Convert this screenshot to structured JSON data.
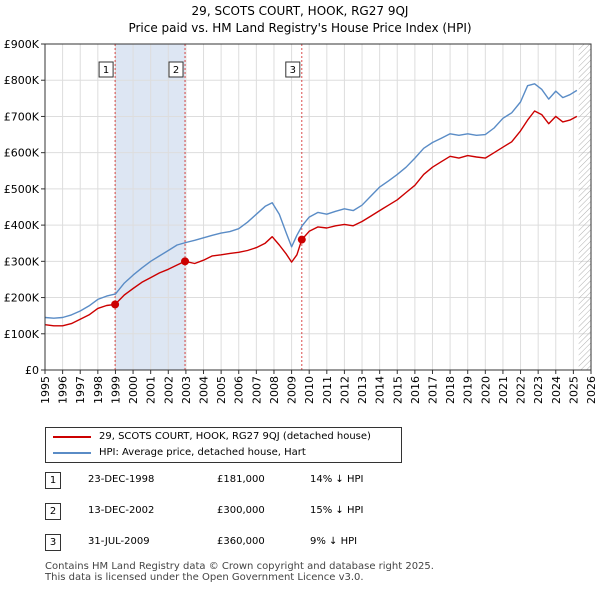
{
  "title_line1": "29, SCOTS COURT, HOOK, RG27 9QJ",
  "title_line2": "Price paid vs. HM Land Registry's House Price Index (HPI)",
  "legend": {
    "property": "29, SCOTS COURT, HOOK, RG27 9QJ (detached house)",
    "hpi": "HPI: Average price, detached house, Hart"
  },
  "colors": {
    "property": "#cc0000",
    "hpi": "#5a8cc6",
    "band": "#dde6f3",
    "marker": "#cc0000",
    "vline": "#cc0000"
  },
  "sales": [
    {
      "num": "1",
      "date": "23-DEC-1998",
      "price": "£181,000",
      "delta": "14% ↓ HPI"
    },
    {
      "num": "2",
      "date": "13-DEC-2002",
      "price": "£300,000",
      "delta": "15% ↓ HPI"
    },
    {
      "num": "3",
      "date": "31-JUL-2009",
      "price": "£360,000",
      "delta": "9% ↓ HPI"
    }
  ],
  "footer": {
    "line1": "Contains HM Land Registry data © Crown copyright and database right 2025.",
    "line2": "This data is licensed under the Open Government Licence v3.0."
  },
  "chart_data": {
    "type": "line",
    "xlim": [
      1995,
      2026
    ],
    "ylim": [
      0,
      900000
    ],
    "y_ticks": [
      0,
      100000,
      200000,
      300000,
      400000,
      500000,
      600000,
      700000,
      800000,
      900000
    ],
    "y_tick_labels": [
      "£0",
      "£100K",
      "£200K",
      "£300K",
      "£400K",
      "£500K",
      "£600K",
      "£700K",
      "£800K",
      "£900K"
    ],
    "x_ticks": [
      1995,
      1996,
      1997,
      1998,
      1999,
      2000,
      2001,
      2002,
      2003,
      2004,
      2005,
      2006,
      2007,
      2008,
      2009,
      2010,
      2011,
      2012,
      2013,
      2014,
      2015,
      2016,
      2017,
      2018,
      2019,
      2020,
      2021,
      2022,
      2023,
      2024,
      2025,
      2026
    ],
    "x_tick_labels": [
      "1995",
      "1996",
      "1997",
      "1998",
      "1999",
      "2000",
      "2001",
      "2002",
      "2003",
      "2004",
      "2005",
      "2006",
      "2007",
      "2008",
      "2009",
      "2010",
      "2011",
      "2012",
      "2013",
      "2014",
      "2015",
      "2016",
      "2017",
      "2018",
      "2019",
      "2020",
      "2021",
      "2022",
      "2023",
      "2024",
      "2025",
      "2026"
    ],
    "grid": true,
    "shaded_bands": [
      [
        1998.98,
        2002.95
      ]
    ],
    "future_hatch_from": 2025.3,
    "sale_markers": [
      {
        "label": "1",
        "x": 1998.98,
        "y": 181000
      },
      {
        "label": "2",
        "x": 2002.95,
        "y": 300000
      },
      {
        "label": "3",
        "x": 2009.58,
        "y": 360000
      }
    ],
    "series": [
      {
        "name": "29, SCOTS COURT, HOOK, RG27 9QJ (detached house)",
        "x": [
          1995.0,
          1995.5,
          1996.0,
          1996.5,
          1997.0,
          1997.5,
          1998.0,
          1998.5,
          1998.98,
          1999.5,
          2000.0,
          2000.5,
          2001.0,
          2001.5,
          2002.0,
          2002.5,
          2002.95,
          2003.5,
          2004.0,
          2004.5,
          2005.0,
          2005.5,
          2006.0,
          2006.5,
          2007.0,
          2007.5,
          2007.9,
          2008.3,
          2008.7,
          2009.0,
          2009.3,
          2009.58,
          2010.0,
          2010.5,
          2011.0,
          2011.5,
          2012.0,
          2012.5,
          2013.0,
          2013.5,
          2014.0,
          2014.5,
          2015.0,
          2015.5,
          2016.0,
          2016.5,
          2017.0,
          2017.5,
          2018.0,
          2018.5,
          2019.0,
          2019.5,
          2020.0,
          2020.5,
          2021.0,
          2021.5,
          2022.0,
          2022.4,
          2022.8,
          2023.2,
          2023.6,
          2024.0,
          2024.4,
          2024.8,
          2025.2
        ],
        "values": [
          125000,
          122000,
          122000,
          128000,
          140000,
          152000,
          170000,
          178000,
          181000,
          207000,
          225000,
          242000,
          255000,
          268000,
          278000,
          290000,
          300000,
          294000,
          303000,
          315000,
          318000,
          322000,
          325000,
          330000,
          338000,
          350000,
          368000,
          345000,
          320000,
          298000,
          318000,
          360000,
          383000,
          395000,
          392000,
          398000,
          402000,
          398000,
          410000,
          425000,
          440000,
          455000,
          470000,
          490000,
          510000,
          540000,
          560000,
          575000,
          590000,
          585000,
          592000,
          588000,
          585000,
          600000,
          615000,
          630000,
          660000,
          690000,
          715000,
          705000,
          680000,
          700000,
          685000,
          690000,
          700000
        ]
      },
      {
        "name": "HPI: Average price, detached house, Hart",
        "x": [
          1995.0,
          1995.5,
          1996.0,
          1996.5,
          1997.0,
          1997.5,
          1998.0,
          1998.5,
          1999.0,
          1999.5,
          2000.0,
          2000.5,
          2001.0,
          2001.5,
          2002.0,
          2002.5,
          2003.0,
          2003.5,
          2004.0,
          2004.5,
          2005.0,
          2005.5,
          2006.0,
          2006.5,
          2007.0,
          2007.5,
          2007.9,
          2008.3,
          2008.7,
          2009.0,
          2009.3,
          2009.6,
          2010.0,
          2010.5,
          2011.0,
          2011.5,
          2012.0,
          2012.5,
          2013.0,
          2013.5,
          2014.0,
          2014.5,
          2015.0,
          2015.5,
          2016.0,
          2016.5,
          2017.0,
          2017.5,
          2018.0,
          2018.5,
          2019.0,
          2019.5,
          2020.0,
          2020.5,
          2021.0,
          2021.5,
          2022.0,
          2022.4,
          2022.8,
          2023.2,
          2023.6,
          2024.0,
          2024.4,
          2024.8,
          2025.2
        ],
        "values": [
          145000,
          143000,
          145000,
          152000,
          163000,
          177000,
          195000,
          204000,
          210000,
          240000,
          262000,
          282000,
          300000,
          315000,
          330000,
          345000,
          352000,
          358000,
          365000,
          372000,
          378000,
          382000,
          390000,
          408000,
          430000,
          452000,
          462000,
          430000,
          378000,
          340000,
          372000,
          398000,
          422000,
          435000,
          430000,
          438000,
          445000,
          440000,
          455000,
          480000,
          505000,
          522000,
          540000,
          560000,
          585000,
          612000,
          628000,
          640000,
          652000,
          648000,
          652000,
          648000,
          650000,
          668000,
          695000,
          710000,
          740000,
          785000,
          790000,
          775000,
          748000,
          770000,
          752000,
          760000,
          772000
        ]
      }
    ]
  }
}
